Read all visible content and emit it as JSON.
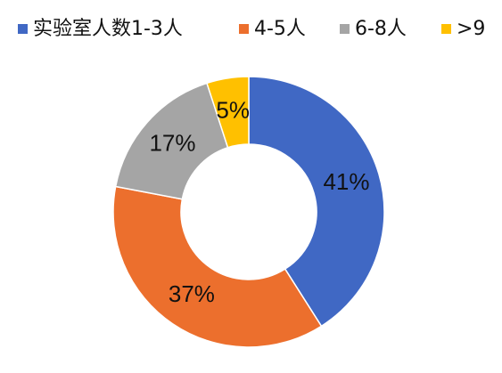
{
  "chart_data": {
    "type": "donut",
    "categories": [
      "实验室人数1-3人",
      "4-5人",
      "6-8人",
      ">9"
    ],
    "values": [
      41,
      37,
      17,
      5
    ],
    "value_labels": [
      "41%",
      "37%",
      "17%",
      "5%"
    ],
    "colors": [
      "#4068c4",
      "#ec6f2d",
      "#a5a5a5",
      "#ffc000"
    ],
    "legend": "top"
  }
}
